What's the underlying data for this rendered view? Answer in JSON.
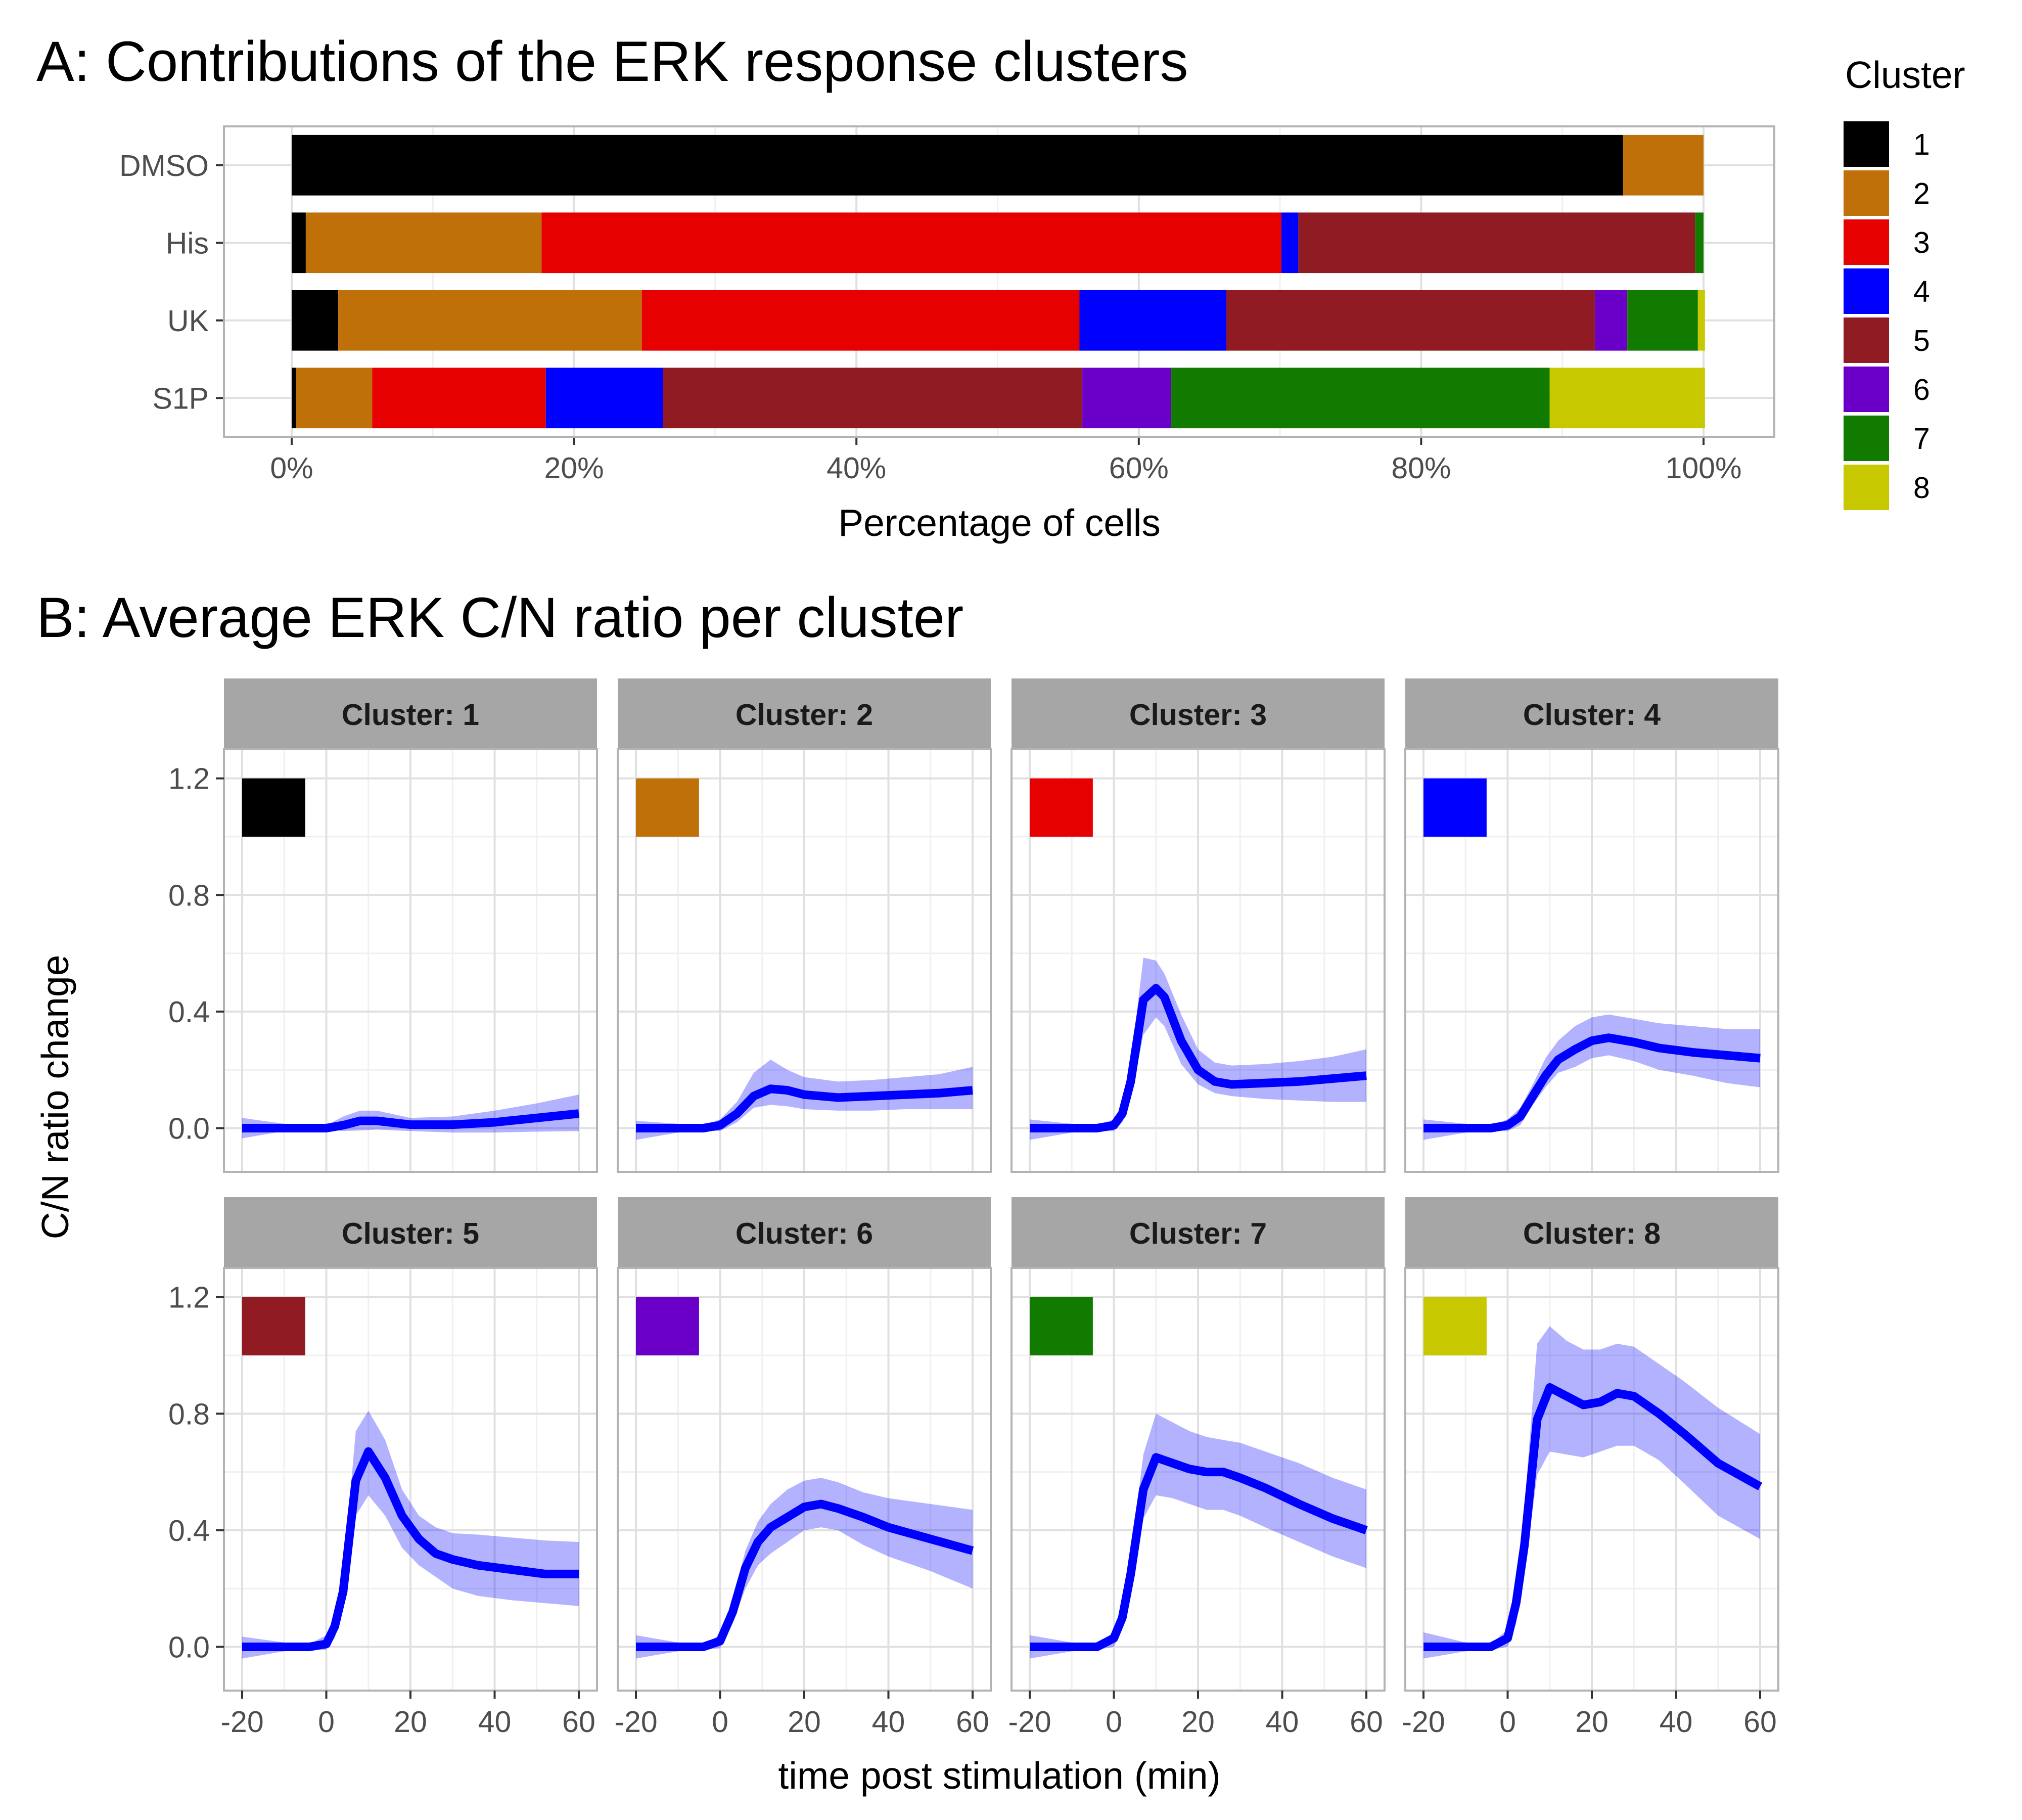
{
  "panel_a_title": "A:  Contributions of the ERK response clusters",
  "panel_b_title": "B:  Average ERK C/N ratio per cluster",
  "legend": {
    "title": "Cluster",
    "items": [
      {
        "label": "1",
        "color": "#000000"
      },
      {
        "label": "2",
        "color": "#C07008"
      },
      {
        "label": "3",
        "color": "#E60000"
      },
      {
        "label": "4",
        "color": "#0000FF"
      },
      {
        "label": "5",
        "color": "#911B22"
      },
      {
        "label": "6",
        "color": "#6A00C8"
      },
      {
        "label": "7",
        "color": "#117B00"
      },
      {
        "label": "8",
        "color": "#C8C800"
      }
    ]
  },
  "chart_data": [
    {
      "type": "bar",
      "orientation": "horizontal",
      "stacked": true,
      "xlabel": "Percentage of cells",
      "ylabel": "",
      "xlim": [
        0,
        100
      ],
      "x_ticks": [
        "0%",
        "20%",
        "40%",
        "60%",
        "80%",
        "100%"
      ],
      "categories": [
        "DMSO",
        "His",
        "UK",
        "S1P"
      ],
      "series": [
        {
          "name": "1",
          "values": [
            94.3,
            1.0,
            3.3,
            0.3
          ]
        },
        {
          "name": "2",
          "values": [
            5.7,
            16.7,
            21.5,
            5.4
          ]
        },
        {
          "name": "3",
          "values": [
            0,
            52.4,
            31.0,
            12.3
          ]
        },
        {
          "name": "4",
          "values": [
            0,
            1.2,
            10.4,
            8.3
          ]
        },
        {
          "name": "5",
          "values": [
            0,
            28.1,
            26.1,
            29.7
          ]
        },
        {
          "name": "6",
          "values": [
            0,
            0,
            2.3,
            6.3
          ]
        },
        {
          "name": "7",
          "values": [
            0,
            0.6,
            5.0,
            26.8
          ]
        },
        {
          "name": "8",
          "values": [
            0,
            0,
            0.5,
            11.0
          ]
        }
      ],
      "grid": true,
      "legend": "right"
    },
    {
      "type": "line",
      "with_ribbon": true,
      "xlabel": "time post stimulation (min)",
      "ylabel": "C/N ratio change",
      "xlim": [
        -20,
        60
      ],
      "ylim": [
        -0.15,
        1.3
      ],
      "x_ticks": [
        -20,
        0,
        20,
        40,
        60
      ],
      "y_ticks": [
        "0.0",
        "0.4",
        "0.8",
        "1.2"
      ],
      "line_color": "#0000FF",
      "facets": [
        {
          "strip": "Cluster: 1",
          "color": "#000000",
          "x": [
            -20,
            -10,
            -4,
            0,
            4,
            8,
            12,
            20,
            30,
            40,
            50,
            60
          ],
          "y": [
            0,
            0,
            0,
            0,
            0.01,
            0.025,
            0.025,
            0.012,
            0.012,
            0.02,
            0.035,
            0.05
          ],
          "lower": [
            -0.035,
            -0.01,
            -0.005,
            -0.005,
            -0.01,
            -0.008,
            -0.005,
            -0.01,
            -0.015,
            -0.015,
            -0.012,
            -0.01
          ],
          "upper": [
            0.035,
            0.015,
            0.005,
            0.01,
            0.04,
            0.06,
            0.06,
            0.035,
            0.04,
            0.06,
            0.085,
            0.115
          ]
        },
        {
          "strip": "Cluster: 2",
          "color": "#C07008",
          "x": [
            -20,
            -10,
            -4,
            0,
            4,
            8,
            12,
            16,
            20,
            28,
            36,
            44,
            52,
            60
          ],
          "y": [
            0,
            0,
            0,
            0.01,
            0.05,
            0.11,
            0.135,
            0.13,
            0.115,
            0.105,
            0.11,
            0.115,
            0.12,
            0.13
          ],
          "lower": [
            -0.04,
            -0.015,
            -0.01,
            -0.01,
            0.02,
            0.07,
            0.08,
            0.075,
            0.065,
            0.06,
            0.06,
            0.065,
            0.065,
            0.065
          ],
          "upper": [
            0.025,
            0.015,
            0.01,
            0.03,
            0.09,
            0.19,
            0.235,
            0.2,
            0.175,
            0.16,
            0.165,
            0.175,
            0.185,
            0.21
          ]
        },
        {
          "strip": "Cluster: 3",
          "color": "#E60000",
          "x": [
            -20,
            -10,
            -4,
            0,
            2,
            4,
            7,
            10,
            12,
            16,
            20,
            24,
            28,
            36,
            44,
            52,
            60
          ],
          "y": [
            0,
            0,
            0,
            0.01,
            0.05,
            0.16,
            0.44,
            0.48,
            0.45,
            0.3,
            0.2,
            0.16,
            0.15,
            0.155,
            0.16,
            0.17,
            0.18
          ],
          "lower": [
            -0.04,
            -0.015,
            -0.01,
            -0.01,
            0.02,
            0.1,
            0.32,
            0.38,
            0.35,
            0.22,
            0.15,
            0.12,
            0.11,
            0.1,
            0.095,
            0.09,
            0.09
          ],
          "upper": [
            0.03,
            0.015,
            0.01,
            0.03,
            0.08,
            0.22,
            0.585,
            0.575,
            0.53,
            0.39,
            0.27,
            0.225,
            0.215,
            0.22,
            0.23,
            0.245,
            0.27
          ]
        },
        {
          "strip": "Cluster: 4",
          "color": "#0000FF",
          "x": [
            -20,
            -10,
            -4,
            0,
            3,
            6,
            9,
            12,
            16,
            20,
            24,
            30,
            36,
            44,
            52,
            60
          ],
          "y": [
            0,
            0,
            0,
            0.01,
            0.04,
            0.11,
            0.18,
            0.235,
            0.27,
            0.3,
            0.31,
            0.295,
            0.275,
            0.26,
            0.25,
            0.24
          ],
          "lower": [
            -0.04,
            -0.015,
            -0.01,
            -0.01,
            0.01,
            0.08,
            0.14,
            0.19,
            0.21,
            0.24,
            0.25,
            0.23,
            0.2,
            0.18,
            0.155,
            0.14
          ],
          "upper": [
            0.03,
            0.015,
            0.01,
            0.03,
            0.07,
            0.15,
            0.24,
            0.3,
            0.35,
            0.38,
            0.39,
            0.375,
            0.36,
            0.35,
            0.34,
            0.34
          ]
        },
        {
          "strip": "Cluster: 5",
          "color": "#911B22",
          "x": [
            -20,
            -10,
            -4,
            0,
            2,
            4,
            7,
            10,
            14,
            18,
            22,
            26,
            30,
            36,
            44,
            52,
            60
          ],
          "y": [
            0,
            0,
            0,
            0.01,
            0.07,
            0.19,
            0.57,
            0.67,
            0.58,
            0.45,
            0.37,
            0.32,
            0.3,
            0.28,
            0.265,
            0.25,
            0.25
          ],
          "lower": [
            -0.04,
            -0.015,
            -0.01,
            -0.01,
            0.03,
            0.13,
            0.45,
            0.52,
            0.45,
            0.34,
            0.28,
            0.24,
            0.2,
            0.175,
            0.16,
            0.15,
            0.14
          ],
          "upper": [
            0.035,
            0.015,
            0.01,
            0.04,
            0.11,
            0.25,
            0.74,
            0.81,
            0.71,
            0.54,
            0.45,
            0.41,
            0.39,
            0.385,
            0.375,
            0.365,
            0.36
          ]
        },
        {
          "strip": "Cluster: 6",
          "color": "#6A00C8",
          "x": [
            -20,
            -10,
            -4,
            0,
            3,
            6,
            9,
            12,
            16,
            20,
            24,
            28,
            34,
            40,
            50,
            60
          ],
          "y": [
            0,
            0,
            0,
            0.02,
            0.12,
            0.27,
            0.36,
            0.41,
            0.445,
            0.48,
            0.49,
            0.475,
            0.445,
            0.41,
            0.37,
            0.33
          ],
          "lower": [
            -0.04,
            -0.015,
            -0.01,
            -0.005,
            0.08,
            0.2,
            0.28,
            0.32,
            0.36,
            0.4,
            0.41,
            0.4,
            0.35,
            0.31,
            0.26,
            0.2
          ],
          "upper": [
            0.04,
            0.015,
            0.01,
            0.04,
            0.16,
            0.33,
            0.43,
            0.49,
            0.54,
            0.57,
            0.58,
            0.565,
            0.53,
            0.51,
            0.49,
            0.47
          ]
        },
        {
          "strip": "Cluster: 7",
          "color": "#117B00",
          "x": [
            -20,
            -10,
            -4,
            0,
            2,
            4,
            7,
            10,
            14,
            18,
            22,
            26,
            30,
            36,
            44,
            52,
            60
          ],
          "y": [
            0,
            0,
            0,
            0.03,
            0.1,
            0.25,
            0.54,
            0.65,
            0.63,
            0.61,
            0.6,
            0.6,
            0.58,
            0.545,
            0.49,
            0.44,
            0.4
          ],
          "lower": [
            -0.04,
            -0.015,
            -0.01,
            0,
            0.06,
            0.18,
            0.44,
            0.52,
            0.51,
            0.49,
            0.47,
            0.47,
            0.45,
            0.41,
            0.36,
            0.31,
            0.27
          ],
          "upper": [
            0.04,
            0.015,
            0.01,
            0.05,
            0.14,
            0.31,
            0.66,
            0.8,
            0.77,
            0.74,
            0.72,
            0.71,
            0.7,
            0.67,
            0.63,
            0.58,
            0.54
          ]
        },
        {
          "strip": "Cluster: 8",
          "color": "#C8C800",
          "x": [
            -20,
            -10,
            -4,
            0,
            2,
            4,
            7,
            10,
            14,
            18,
            22,
            26,
            30,
            36,
            42,
            50,
            60
          ],
          "y": [
            0,
            0,
            0,
            0.03,
            0.15,
            0.35,
            0.78,
            0.89,
            0.86,
            0.83,
            0.84,
            0.87,
            0.86,
            0.8,
            0.73,
            0.63,
            0.55
          ],
          "lower": [
            -0.04,
            -0.015,
            -0.01,
            0,
            0.08,
            0.25,
            0.59,
            0.67,
            0.66,
            0.65,
            0.67,
            0.69,
            0.69,
            0.64,
            0.56,
            0.45,
            0.37
          ],
          "upper": [
            0.05,
            0.015,
            0.01,
            0.06,
            0.22,
            0.48,
            1.04,
            1.1,
            1.05,
            1.02,
            1.02,
            1.04,
            1.03,
            0.97,
            0.91,
            0.82,
            0.73
          ]
        }
      ]
    }
  ]
}
